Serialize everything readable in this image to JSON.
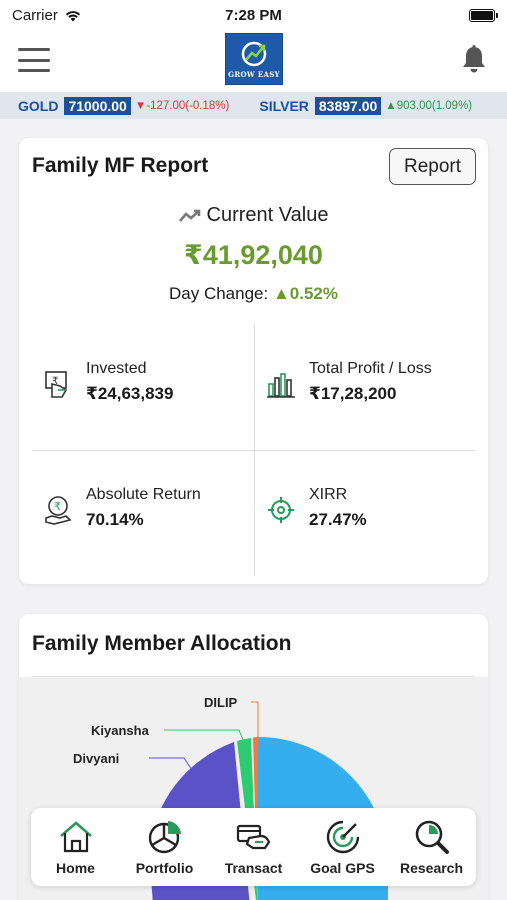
{
  "status_bar": {
    "carrier": "Carrier",
    "time": "7:28 PM"
  },
  "header": {
    "logo_text": "GROW EASY"
  },
  "ticker": {
    "gold": {
      "name": "GOLD",
      "price": "71000.00",
      "change": "-127.00(-0.18%)",
      "direction": "down"
    },
    "silver": {
      "name": "SILVER",
      "price": "83897.00",
      "change": "903.00(1.09%)",
      "direction": "up"
    }
  },
  "report_card": {
    "title": "Family MF Report",
    "report_button": "Report",
    "current_value_label": "Current Value",
    "current_value": "₹41,92,040",
    "day_change_label": "Day Change:",
    "day_change_value": "0.52%",
    "stats": [
      {
        "label": "Invested",
        "value": "₹24,63,839",
        "icon": "invest-icon"
      },
      {
        "label": "Total Profit / Loss",
        "value": "₹17,28,200",
        "icon": "bar-chart-icon"
      },
      {
        "label": "Absolute Return",
        "value": "70.14%",
        "icon": "rupee-hand-icon"
      },
      {
        "label": "XIRR",
        "value": "27.47%",
        "icon": "target-icon"
      }
    ]
  },
  "allocation_card": {
    "title": "Family Member Allocation",
    "chart_data": {
      "type": "pie",
      "labels": [
        "DILIP",
        "Kiyansha",
        "Divyani"
      ],
      "colors": {
        "DILIP": "#f07a3e",
        "Kiyansha": "#2ecc71",
        "Divyani": "#5b52c7",
        "other": "#35aef0"
      }
    }
  },
  "tabs": [
    {
      "label": "Home",
      "icon": "home-icon"
    },
    {
      "label": "Portfolio",
      "icon": "portfolio-icon"
    },
    {
      "label": "Transact",
      "icon": "transact-icon"
    },
    {
      "label": "Goal GPS",
      "icon": "goal-gps-icon"
    },
    {
      "label": "Research",
      "icon": "research-icon"
    }
  ],
  "colors": {
    "accent_green": "#6a9b2e",
    "brand_blue": "#1d4f9c",
    "tab_green": "#2a9a5a"
  }
}
